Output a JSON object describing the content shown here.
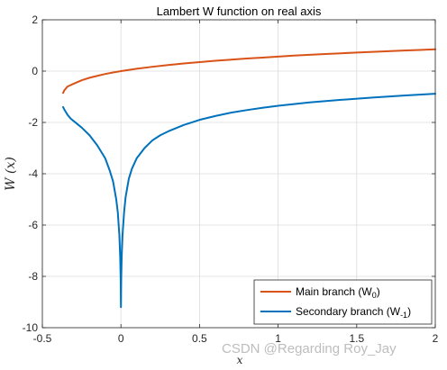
{
  "chart_data": {
    "type": "line",
    "title": "Lambert W function on real axis",
    "ylabel": "W (x)",
    "xlabel": "x",
    "xlim": [
      -0.5,
      2
    ],
    "ylim": [
      -10,
      2
    ],
    "xticks": [
      "-0.5",
      "0",
      "0.5",
      "1",
      "1.5",
      "2"
    ],
    "yticks": [
      "2",
      "0",
      "-2",
      "-4",
      "-6",
      "-8",
      "-10"
    ],
    "grid": true,
    "legend_position": "bottom-right",
    "series": [
      {
        "name": "Main branch (W0)",
        "legend_main": "Main branch (W",
        "legend_sub": "0",
        "legend_close": ")",
        "color": "#D95319",
        "x": [
          -0.3679,
          -0.36,
          -0.34,
          -0.3,
          -0.25,
          -0.2,
          -0.15,
          -0.1,
          -0.05,
          0,
          0.1,
          0.2,
          0.3,
          0.4,
          0.5,
          0.6,
          0.7,
          0.8,
          0.9,
          1.0,
          1.1,
          1.2,
          1.3,
          1.4,
          1.5,
          1.6,
          1.7,
          1.8,
          1.9,
          2.0
        ],
        "y": [
          -0.85,
          -0.745,
          -0.6,
          -0.489,
          -0.357,
          -0.259,
          -0.183,
          -0.112,
          -0.053,
          0,
          0.091,
          0.169,
          0.237,
          0.298,
          0.352,
          0.402,
          0.446,
          0.489,
          0.528,
          0.567,
          0.603,
          0.635,
          0.666,
          0.695,
          0.725,
          0.752,
          0.777,
          0.802,
          0.826,
          0.852
        ]
      },
      {
        "name": "Secondary branch (W-1)",
        "legend_main": "Secondary branch (W",
        "legend_sub": "-1",
        "legend_close": ")",
        "color": "#0072BD",
        "x": [
          -0.3679,
          -0.36,
          -0.34,
          -0.32,
          -0.3,
          -0.25,
          -0.2,
          -0.15,
          -0.1,
          -0.07,
          -0.05,
          -0.03,
          -0.02,
          -0.01,
          -0.005,
          -0.002,
          -0.001,
          -0.0005,
          0,
          0.0005,
          0.001,
          0.002,
          0.005,
          0.01,
          0.02,
          0.03,
          0.05,
          0.07,
          0.1,
          0.15,
          0.2,
          0.25,
          0.3,
          0.4,
          0.5,
          0.6,
          0.7,
          0.8,
          0.9,
          1.0,
          1.2,
          1.4,
          1.6,
          1.8,
          2.0
        ],
        "y": [
          -1.4,
          -1.5,
          -1.7,
          -1.85,
          -1.95,
          -2.2,
          -2.5,
          -2.9,
          -3.4,
          -3.9,
          -4.3,
          -5.0,
          -5.5,
          -6.4,
          -7.2,
          -8.0,
          -8.5,
          -8.9,
          -9.2,
          -8.9,
          -8.5,
          -8.0,
          -7.2,
          -6.4,
          -5.5,
          -4.9,
          -4.2,
          -3.8,
          -3.4,
          -3.0,
          -2.7,
          -2.5,
          -2.35,
          -2.1,
          -1.9,
          -1.75,
          -1.62,
          -1.52,
          -1.43,
          -1.35,
          -1.22,
          -1.12,
          -1.03,
          -0.95,
          -0.88
        ]
      }
    ]
  },
  "watermark": "CSDN @Regarding Roy_Jay"
}
